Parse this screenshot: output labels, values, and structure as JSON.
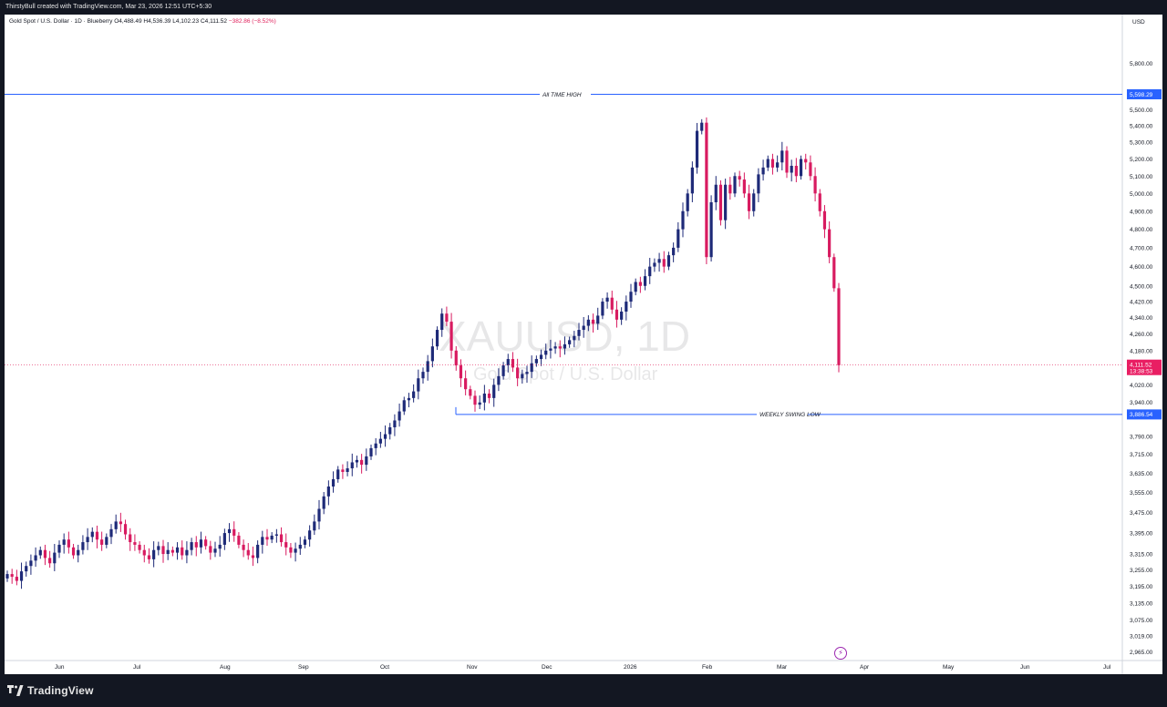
{
  "header": {
    "credit": "ThirstyBull created with TradingView.com, Mar 23, 2026 12:51 UTC+5:30"
  },
  "legend": {
    "symbol_desc": "Gold Spot / U.S. Dollar · 1D · Blueberry",
    "open": "O4,488.49",
    "high": "H4,536.39",
    "low": "L4,102.23",
    "close": "C4,111.52",
    "change": "−382.86 (−8.52%)"
  },
  "watermark": {
    "symbol": "XAUUSD, 1D",
    "description": "Gold Spot / U.S. Dollar"
  },
  "currency": "USD",
  "footer": {
    "brand": "TradingView"
  },
  "colors": {
    "up": "#1e2a78",
    "down": "#d81b60",
    "level_line": "#2962ff",
    "last_price_badge": "#e91e63",
    "level_badge": "#2962ff"
  },
  "chart_data": {
    "type": "candlestick",
    "title": "XAUUSD, 1D",
    "subtitle": "Gold Spot / U.S. Dollar",
    "y_axis": {
      "scale": "log",
      "ticks": [
        "5,800.00",
        "5,500.00",
        "5,400.00",
        "5,300.00",
        "5,200.00",
        "5,100.00",
        "5,000.00",
        "4,900.00",
        "4,800.00",
        "4,700.00",
        "4,600.00",
        "4,500.00",
        "4,420.00",
        "4,340.00",
        "4,260.00",
        "4,180.00",
        "4,020.00",
        "3,940.00",
        "3,790.00",
        "3,715.00",
        "3,635.00",
        "3,555.00",
        "3,475.00",
        "3,395.00",
        "3,315.00",
        "3,255.00",
        "3,195.00",
        "3,135.00",
        "3,075.00",
        "3,019.00",
        "2,965.00"
      ],
      "range": [
        2945,
        5980
      ]
    },
    "x_axis": {
      "ticks": [
        "Jun",
        "Jul",
        "Aug",
        "Sep",
        "Oct",
        "Nov",
        "Dec",
        "2026",
        "Feb",
        "Mar",
        "Apr",
        "May",
        "Jun",
        "Jul"
      ]
    },
    "levels": [
      {
        "label": "All TIME HIGH",
        "value": 5598.29,
        "badge": "5,598.29"
      },
      {
        "label": "WEEKLY SWING LOW",
        "value": 3886.54,
        "badge": "3,886.54"
      }
    ],
    "last_price": {
      "value": 4111.52,
      "badge": "4,111.52",
      "countdown": "13:38:53"
    },
    "series_close": [
      3240,
      3230,
      3215,
      3250,
      3270,
      3290,
      3310,
      3330,
      3300,
      3280,
      3320,
      3350,
      3370,
      3340,
      3310,
      3330,
      3360,
      3380,
      3400,
      3370,
      3350,
      3380,
      3410,
      3440,
      3430,
      3390,
      3360,
      3350,
      3330,
      3310,
      3295,
      3330,
      3345,
      3315,
      3330,
      3320,
      3340,
      3310,
      3330,
      3360,
      3340,
      3370,
      3345,
      3320,
      3335,
      3350,
      3395,
      3410,
      3385,
      3350,
      3330,
      3310,
      3300,
      3350,
      3380,
      3370,
      3385,
      3390,
      3360,
      3340,
      3320,
      3335,
      3350,
      3370,
      3405,
      3440,
      3490,
      3540,
      3580,
      3610,
      3650,
      3640,
      3655,
      3680,
      3690,
      3670,
      3705,
      3740,
      3760,
      3780,
      3800,
      3830,
      3860,
      3900,
      3950,
      3960,
      3990,
      4050,
      4080,
      4130,
      4200,
      4280,
      4360,
      4320,
      4180,
      4110,
      4050,
      4000,
      3970,
      3930,
      3940,
      3980,
      3960,
      4020,
      4060,
      4110,
      4140,
      4100,
      4050,
      4070,
      4080,
      4120,
      4140,
      4160,
      4180,
      4190,
      4200,
      4190,
      4210,
      4230,
      4250,
      4280,
      4300,
      4330,
      4310,
      4350,
      4420,
      4440,
      4380,
      4330,
      4370,
      4420,
      4470,
      4520,
      4500,
      4550,
      4600,
      4620,
      4640,
      4600,
      4660,
      4700,
      4800,
      4900,
      5000,
      5150,
      5370,
      5420,
      4650,
      4950,
      5050,
      4850,
      5050,
      5000,
      5100,
      5080,
      5000,
      4900,
      5000,
      5110,
      5150,
      5200,
      5150,
      5180,
      5250,
      5120,
      5160,
      5100,
      5200,
      5180,
      5100,
      5000,
      4900,
      4800,
      4650,
      4488,
      4111
    ]
  }
}
